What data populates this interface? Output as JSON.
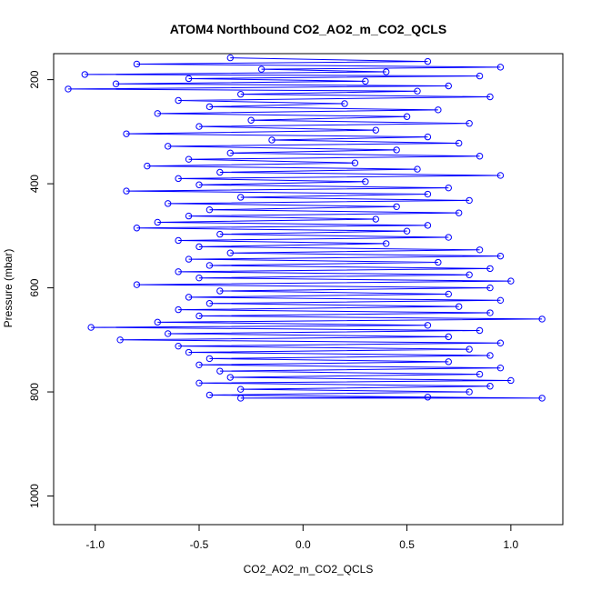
{
  "chart_data": {
    "type": "scatter",
    "title": "ATOM4 Northbound CO2_AO2_m_CO2_QCLS",
    "xlabel": "CO2_AO2_m_CO2_QCLS",
    "ylabel": "Pressure (mbar)",
    "xlim": [
      -1.2,
      1.25
    ],
    "ylim": [
      1055,
      150
    ],
    "y_reversed": true,
    "x_ticks": [
      -1.0,
      -0.5,
      0.0,
      0.5,
      1.0
    ],
    "x_tick_labels": [
      "-1.0",
      "-0.5",
      "0.0",
      "0.5",
      "1.0"
    ],
    "y_ticks": [
      200,
      400,
      600,
      800,
      1000
    ],
    "y_tick_labels": [
      "200",
      "400",
      "600",
      "800",
      "1000"
    ],
    "grid": false,
    "legend": "none",
    "series": [
      {
        "marker": "open-circle",
        "line": true,
        "color": "#0000ff",
        "points": [
          [
            -0.35,
            158
          ],
          [
            0.6,
            165
          ],
          [
            -0.8,
            170
          ],
          [
            0.95,
            176
          ],
          [
            -0.2,
            180
          ],
          [
            0.4,
            185
          ],
          [
            -1.05,
            190
          ],
          [
            0.85,
            193
          ],
          [
            -0.55,
            198
          ],
          [
            0.3,
            203
          ],
          [
            -0.9,
            208
          ],
          [
            0.7,
            212
          ],
          [
            -1.13,
            218
          ],
          [
            0.55,
            222
          ],
          [
            -0.3,
            228
          ],
          [
            0.9,
            233
          ],
          [
            -0.6,
            240
          ],
          [
            0.2,
            246
          ],
          [
            -0.45,
            252
          ],
          [
            0.65,
            258
          ],
          [
            -0.7,
            265
          ],
          [
            0.5,
            271
          ],
          [
            -0.25,
            278
          ],
          [
            0.8,
            284
          ],
          [
            -0.5,
            290
          ],
          [
            0.35,
            297
          ],
          [
            -0.85,
            304
          ],
          [
            0.6,
            310
          ],
          [
            -0.15,
            316
          ],
          [
            0.75,
            322
          ],
          [
            -0.65,
            328
          ],
          [
            0.45,
            335
          ],
          [
            -0.35,
            341
          ],
          [
            0.85,
            347
          ],
          [
            -0.55,
            353
          ],
          [
            0.25,
            360
          ],
          [
            -0.75,
            366
          ],
          [
            0.55,
            372
          ],
          [
            -0.4,
            378
          ],
          [
            0.95,
            384
          ],
          [
            -0.6,
            390
          ],
          [
            0.3,
            396
          ],
          [
            -0.5,
            402
          ],
          [
            0.7,
            408
          ],
          [
            -0.85,
            414
          ],
          [
            0.6,
            420
          ],
          [
            -0.3,
            426
          ],
          [
            0.8,
            432
          ],
          [
            -0.65,
            438
          ],
          [
            0.45,
            444
          ],
          [
            -0.45,
            450
          ],
          [
            0.75,
            456
          ],
          [
            -0.55,
            462
          ],
          [
            0.35,
            468
          ],
          [
            -0.7,
            474
          ],
          [
            0.6,
            480
          ],
          [
            -0.8,
            485
          ],
          [
            0.5,
            491
          ],
          [
            -0.4,
            497
          ],
          [
            0.7,
            503
          ],
          [
            -0.6,
            509
          ],
          [
            0.4,
            515
          ],
          [
            -0.5,
            521
          ],
          [
            0.85,
            527
          ],
          [
            -0.35,
            533
          ],
          [
            0.95,
            539
          ],
          [
            -0.55,
            545
          ],
          [
            0.65,
            551
          ],
          [
            -0.45,
            557
          ],
          [
            0.9,
            563
          ],
          [
            -0.6,
            569
          ],
          [
            0.8,
            575
          ],
          [
            -0.5,
            581
          ],
          [
            1.0,
            587
          ],
          [
            -0.8,
            594
          ],
          [
            0.9,
            600
          ],
          [
            -0.4,
            606
          ],
          [
            0.7,
            612
          ],
          [
            -0.55,
            618
          ],
          [
            0.95,
            624
          ],
          [
            -0.45,
            630
          ],
          [
            0.75,
            636
          ],
          [
            -0.6,
            642
          ],
          [
            0.9,
            648
          ],
          [
            -0.5,
            654
          ],
          [
            1.15,
            660
          ],
          [
            -0.7,
            666
          ],
          [
            0.6,
            672
          ],
          [
            -1.02,
            676
          ],
          [
            0.85,
            682
          ],
          [
            -0.65,
            688
          ],
          [
            0.7,
            694
          ],
          [
            -0.88,
            700
          ],
          [
            0.95,
            706
          ],
          [
            -0.6,
            712
          ],
          [
            0.8,
            718
          ],
          [
            -0.55,
            724
          ],
          [
            0.9,
            730
          ],
          [
            -0.45,
            736
          ],
          [
            0.7,
            742
          ],
          [
            -0.5,
            748
          ],
          [
            0.95,
            754
          ],
          [
            -0.4,
            760
          ],
          [
            0.85,
            766
          ],
          [
            -0.35,
            772
          ],
          [
            1.0,
            778
          ],
          [
            -0.5,
            783
          ],
          [
            0.9,
            789
          ],
          [
            -0.3,
            795
          ],
          [
            0.8,
            800
          ],
          [
            -0.45,
            806
          ],
          [
            1.15,
            812
          ],
          [
            -0.3,
            812
          ],
          [
            0.6,
            810
          ]
        ]
      }
    ]
  }
}
